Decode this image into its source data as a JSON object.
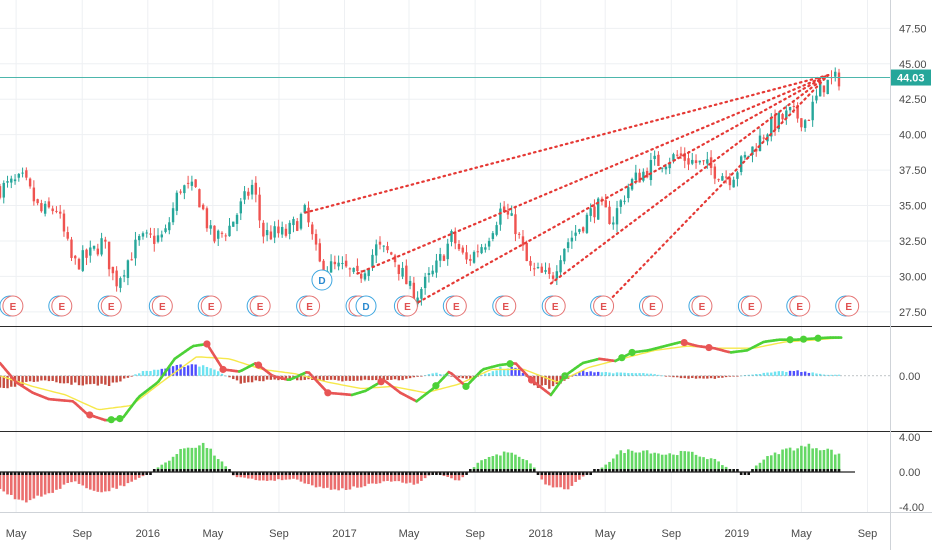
{
  "colors": {
    "up": "#26a69a",
    "down": "#ef5350",
    "trendline": "#e53935",
    "price_line": "#4db6ac",
    "price_badge": "#26a69a",
    "macd_fast": "#4cd137",
    "macd_slow": "#f6e84a",
    "hist_cyan": "#5ee0f0",
    "hist_blue": "#3b3bff",
    "hist_red": "#c0392b",
    "osc_green": "#4ad14a",
    "osc_red": "#e85555",
    "grid": "#eef0f3",
    "axis_text": "#4a4a4a"
  },
  "chart_data": [
    {
      "type": "candlestick",
      "panel": "price",
      "x_start": "2015-04",
      "x_end": "2019-09",
      "ylim": [
        26.5,
        49.5
      ],
      "yticks": [
        "47.50",
        "45.00",
        "42.50",
        "40.00",
        "37.50",
        "35.00",
        "32.50",
        "30.00",
        "27.50"
      ],
      "last_price": "44.03",
      "close_path": [
        [
          "2015-04-01",
          36.2
        ],
        [
          "2015-05-15",
          36.8
        ],
        [
          "2015-06-15",
          34.5
        ],
        [
          "2015-07-15",
          34.8
        ],
        [
          "2015-08-15",
          30.8
        ],
        [
          "2015-09-15",
          31.5
        ],
        [
          "2015-10-10",
          32.5
        ],
        [
          "2015-11-01",
          29.5
        ],
        [
          "2015-12-15",
          32.5
        ],
        [
          "2016-02-01",
          32.8
        ],
        [
          "2016-03-01",
          36.3
        ],
        [
          "2016-04-01",
          36.0
        ],
        [
          "2016-05-01",
          32.5
        ],
        [
          "2016-06-01",
          33.5
        ],
        [
          "2016-07-15",
          36.5
        ],
        [
          "2016-08-01",
          33.0
        ],
        [
          "2016-09-15",
          33.0
        ],
        [
          "2016-10-20",
          34.5
        ],
        [
          "2016-11-15",
          30.8
        ],
        [
          "2017-01-01",
          30.5
        ],
        [
          "2017-01-25",
          29.8
        ],
        [
          "2017-03-01",
          32.0
        ],
        [
          "2017-04-01",
          31.5
        ],
        [
          "2017-05-10",
          28.5
        ],
        [
          "2017-06-15",
          30.2
        ],
        [
          "2017-07-20",
          32.8
        ],
        [
          "2017-08-15",
          31.0
        ],
        [
          "2017-09-20",
          32.5
        ],
        [
          "2017-10-20",
          34.8
        ],
        [
          "2017-11-15",
          33.5
        ],
        [
          "2017-12-10",
          30.5
        ],
        [
          "2018-01-20",
          29.8
        ],
        [
          "2018-02-10",
          32.0
        ],
        [
          "2018-03-15",
          33.5
        ],
        [
          "2018-04-15",
          35.0
        ],
        [
          "2018-05-15",
          34.0
        ],
        [
          "2018-06-15",
          36.5
        ],
        [
          "2018-08-01",
          38.0
        ],
        [
          "2018-09-15",
          38.5
        ],
        [
          "2018-11-01",
          37.8
        ],
        [
          "2018-12-20",
          37.0
        ],
        [
          "2019-01-20",
          38.5
        ],
        [
          "2019-03-01",
          40.5
        ],
        [
          "2019-04-10",
          41.5
        ],
        [
          "2019-05-10",
          41.0
        ],
        [
          "2019-06-10",
          43.5
        ],
        [
          "2019-07-12",
          44.0
        ]
      ],
      "trendlines": [
        {
          "from": [
            "2016-10-20",
            34.5
          ],
          "to": [
            "2019-06-20",
            44.2
          ]
        },
        {
          "from": [
            "2017-05-10",
            28.0
          ],
          "to": [
            "2019-06-20",
            44.2
          ]
        },
        {
          "from": [
            "2018-01-20",
            29.5
          ],
          "to": [
            "2019-06-20",
            44.2
          ]
        },
        {
          "from": [
            "2018-05-01",
            28.0
          ],
          "to": [
            "2019-06-20",
            44.2
          ]
        },
        {
          "from": [
            "2017-01-25",
            30.2
          ],
          "to": [
            "2019-06-20",
            44.2
          ]
        }
      ],
      "events": [
        {
          "label": "E",
          "date": "2015-04-25"
        },
        {
          "label": "E",
          "date": "2015-07-25"
        },
        {
          "label": "E",
          "date": "2015-10-25"
        },
        {
          "label": "E",
          "date": "2016-01-28"
        },
        {
          "label": "E",
          "date": "2016-04-28"
        },
        {
          "label": "E",
          "date": "2016-07-28"
        },
        {
          "label": "E",
          "date": "2016-10-28"
        },
        {
          "label": "E",
          "date": "2017-01-28"
        },
        {
          "label": "E",
          "date": "2017-04-28"
        },
        {
          "label": "E",
          "date": "2017-07-28"
        },
        {
          "label": "E",
          "date": "2017-10-28"
        },
        {
          "label": "E",
          "date": "2018-01-28"
        },
        {
          "label": "E",
          "date": "2018-04-28"
        },
        {
          "label": "E",
          "date": "2018-07-28"
        },
        {
          "label": "E",
          "date": "2018-10-28"
        },
        {
          "label": "E",
          "date": "2019-01-28"
        },
        {
          "label": "E",
          "date": "2019-04-28"
        },
        {
          "label": "E",
          "date": "2019-07-28"
        },
        {
          "label": "D",
          "date": "2016-11-20",
          "raised": true
        },
        {
          "label": "D",
          "date": "2017-02-10"
        }
      ]
    },
    {
      "type": "line+bar",
      "panel": "macd",
      "ylim": [
        -2.6,
        2.3
      ],
      "yticks": [
        "0.00"
      ],
      "fast_line": [
        [
          "2015-04-01",
          0.6
        ],
        [
          "2015-05-01",
          -0.3
        ],
        [
          "2015-06-01",
          -0.8
        ],
        [
          "2015-07-01",
          -1.1
        ],
        [
          "2015-08-15",
          -1.2
        ],
        [
          "2015-09-10",
          -1.8
        ],
        [
          "2015-10-15",
          -2.1
        ],
        [
          "2015-11-15",
          -2.0
        ],
        [
          "2015-12-15",
          -1.0
        ],
        [
          "2016-01-20",
          -0.3
        ],
        [
          "2016-02-20",
          0.8
        ],
        [
          "2016-03-25",
          1.4
        ],
        [
          "2016-04-20",
          1.5
        ],
        [
          "2016-05-20",
          0.3
        ],
        [
          "2016-06-20",
          0.2
        ],
        [
          "2016-07-20",
          0.6
        ],
        [
          "2016-08-20",
          0.0
        ],
        [
          "2016-09-20",
          -0.2
        ],
        [
          "2016-10-25",
          0.2
        ],
        [
          "2016-12-01",
          -0.8
        ],
        [
          "2017-01-15",
          -0.9
        ],
        [
          "2017-02-10",
          -0.7
        ],
        [
          "2017-03-15",
          -0.2
        ],
        [
          "2017-04-15",
          -0.8
        ],
        [
          "2017-05-15",
          -1.2
        ],
        [
          "2017-06-15",
          -0.6
        ],
        [
          "2017-07-15",
          0.2
        ],
        [
          "2017-08-15",
          -0.5
        ],
        [
          "2017-09-15",
          0.3
        ],
        [
          "2017-10-15",
          0.5
        ],
        [
          "2017-11-15",
          0.6
        ],
        [
          "2017-12-15",
          -0.2
        ],
        [
          "2018-01-20",
          -0.9
        ],
        [
          "2018-02-15",
          0.0
        ],
        [
          "2018-03-20",
          0.6
        ],
        [
          "2018-04-20",
          0.8
        ],
        [
          "2018-05-20",
          0.7
        ],
        [
          "2018-06-20",
          1.1
        ],
        [
          "2018-07-20",
          1.2
        ],
        [
          "2018-08-20",
          1.4
        ],
        [
          "2018-09-20",
          1.6
        ],
        [
          "2018-10-20",
          1.4
        ],
        [
          "2018-11-20",
          1.3
        ],
        [
          "2018-12-20",
          1.1
        ],
        [
          "2019-01-20",
          1.2
        ],
        [
          "2019-02-20",
          1.6
        ],
        [
          "2019-03-20",
          1.7
        ],
        [
          "2019-04-20",
          1.7
        ],
        [
          "2019-05-20",
          1.75
        ],
        [
          "2019-06-20",
          1.8
        ],
        [
          "2019-07-15",
          1.8
        ]
      ],
      "slow_line": [
        [
          "2015-04-01",
          0.0
        ],
        [
          "2015-06-01",
          -0.5
        ],
        [
          "2015-08-01",
          -0.9
        ],
        [
          "2015-10-01",
          -1.6
        ],
        [
          "2015-12-01",
          -1.4
        ],
        [
          "2016-02-01",
          -0.2
        ],
        [
          "2016-04-01",
          0.9
        ],
        [
          "2016-06-01",
          0.8
        ],
        [
          "2016-08-01",
          0.3
        ],
        [
          "2016-10-01",
          0.1
        ],
        [
          "2016-12-01",
          -0.3
        ],
        [
          "2017-02-01",
          -0.6
        ],
        [
          "2017-04-01",
          -0.5
        ],
        [
          "2017-06-01",
          -0.8
        ],
        [
          "2017-08-01",
          -0.4
        ],
        [
          "2017-10-01",
          0.3
        ],
        [
          "2017-12-01",
          0.3
        ],
        [
          "2018-02-01",
          -0.3
        ],
        [
          "2018-04-01",
          0.4
        ],
        [
          "2018-06-01",
          0.8
        ],
        [
          "2018-08-01",
          1.2
        ],
        [
          "2018-10-01",
          1.4
        ],
        [
          "2018-12-01",
          1.3
        ],
        [
          "2019-02-01",
          1.3
        ],
        [
          "2019-04-01",
          1.6
        ],
        [
          "2019-06-01",
          1.7
        ],
        [
          "2019-07-15",
          1.8
        ]
      ],
      "histogram": [
        [
          "2015-04-15",
          -0.6,
          "red"
        ],
        [
          "2015-06-10",
          -0.25,
          "red"
        ],
        [
          "2015-08-10",
          -0.4,
          "red"
        ],
        [
          "2015-10-20",
          -0.5,
          "red"
        ],
        [
          "2015-12-20",
          0.2,
          "cyan"
        ],
        [
          "2016-02-20",
          0.45,
          "blue"
        ],
        [
          "2016-03-20",
          0.6,
          "blue"
        ],
        [
          "2016-04-20",
          0.5,
          "cyan"
        ],
        [
          "2016-06-20",
          -0.35,
          "red"
        ],
        [
          "2016-08-20",
          -0.2,
          "red"
        ],
        [
          "2016-10-20",
          -0.2,
          "red"
        ],
        [
          "2016-12-20",
          -0.25,
          "red"
        ],
        [
          "2017-02-20",
          -0.2,
          "red"
        ],
        [
          "2017-04-20",
          -0.2,
          "red"
        ],
        [
          "2017-06-20",
          0.15,
          "cyan"
        ],
        [
          "2017-08-20",
          -0.2,
          "red"
        ],
        [
          "2017-10-20",
          0.4,
          "cyan"
        ],
        [
          "2017-11-20",
          0.45,
          "blue"
        ],
        [
          "2017-12-20",
          -0.5,
          "red"
        ],
        [
          "2018-01-20",
          -0.6,
          "red"
        ],
        [
          "2018-03-20",
          0.25,
          "blue"
        ],
        [
          "2018-05-20",
          0.15,
          "cyan"
        ],
        [
          "2018-07-20",
          0.12,
          "cyan"
        ],
        [
          "2018-09-20",
          -0.12,
          "red"
        ],
        [
          "2018-11-20",
          -0.15,
          "red"
        ],
        [
          "2019-01-20",
          0.05,
          "cyan"
        ],
        [
          "2019-03-20",
          0.2,
          "cyan"
        ],
        [
          "2019-04-20",
          0.25,
          "blue"
        ],
        [
          "2019-06-20",
          0.05,
          "cyan"
        ]
      ],
      "crossovers": [
        "2015-09-15",
        "2015-10-25",
        "2015-11-10",
        "2016-04-20",
        "2016-05-20",
        "2016-07-25",
        "2016-12-01",
        "2017-03-10",
        "2017-06-20",
        "2017-08-15",
        "2017-11-05",
        "2017-12-15",
        "2018-02-15",
        "2018-06-01",
        "2018-06-20",
        "2018-09-25",
        "2018-11-10",
        "2019-04-10",
        "2019-05-05",
        "2019-06-01"
      ]
    },
    {
      "type": "bar",
      "panel": "oscillator",
      "ylim": [
        -4.6,
        4.6
      ],
      "yticks": [
        "4.00",
        "0.00",
        "-4.00"
      ],
      "profile": [
        [
          "2015-04-01",
          -2.0
        ],
        [
          "2015-05-20",
          -3.5
        ],
        [
          "2015-07-01",
          -2.5
        ],
        [
          "2015-08-15",
          -1.0
        ],
        [
          "2015-10-01",
          -2.5
        ],
        [
          "2015-11-15",
          -1.6
        ],
        [
          "2016-01-01",
          -0.2
        ],
        [
          "2016-02-01",
          1.0
        ],
        [
          "2016-03-10",
          2.8
        ],
        [
          "2016-04-15",
          3.2
        ],
        [
          "2016-05-20",
          1.0
        ],
        [
          "2016-06-10",
          -0.5
        ],
        [
          "2016-08-01",
          -1.0
        ],
        [
          "2016-10-01",
          -0.8
        ],
        [
          "2016-11-15",
          -1.8
        ],
        [
          "2017-01-01",
          -2.0
        ],
        [
          "2017-02-15",
          -1.5
        ],
        [
          "2017-04-01",
          -1.0
        ],
        [
          "2017-05-15",
          -1.5
        ],
        [
          "2017-06-15",
          0.0
        ],
        [
          "2017-08-01",
          -1.0
        ],
        [
          "2017-09-15",
          1.5
        ],
        [
          "2017-11-01",
          2.3
        ],
        [
          "2017-12-15",
          1.0
        ],
        [
          "2018-01-10",
          -1.5
        ],
        [
          "2018-02-20",
          -2.0
        ],
        [
          "2018-03-20",
          -0.5
        ],
        [
          "2018-04-20",
          0.3
        ],
        [
          "2018-06-01",
          2.4
        ],
        [
          "2018-07-15",
          2.5
        ],
        [
          "2018-08-20",
          2.0
        ],
        [
          "2018-10-01",
          2.3
        ],
        [
          "2018-11-20",
          1.4
        ],
        [
          "2018-12-20",
          0.3
        ],
        [
          "2019-01-20",
          -0.2
        ],
        [
          "2019-02-20",
          1.5
        ],
        [
          "2019-04-01",
          2.6
        ],
        [
          "2019-05-15",
          3.0
        ],
        [
          "2019-06-20",
          2.6
        ],
        [
          "2019-07-15",
          1.8
        ]
      ]
    }
  ],
  "x_axis": {
    "labels": [
      {
        "text": "May",
        "date": "2015-05-01"
      },
      {
        "text": "Sep",
        "date": "2015-09-01"
      },
      {
        "text": "2016",
        "date": "2016-01-01"
      },
      {
        "text": "May",
        "date": "2016-05-01"
      },
      {
        "text": "Sep",
        "date": "2016-09-01"
      },
      {
        "text": "2017",
        "date": "2017-01-01"
      },
      {
        "text": "May",
        "date": "2017-05-01"
      },
      {
        "text": "Sep",
        "date": "2017-09-01"
      },
      {
        "text": "2018",
        "date": "2018-01-01"
      },
      {
        "text": "May",
        "date": "2018-05-01"
      },
      {
        "text": "Sep",
        "date": "2018-09-01"
      },
      {
        "text": "2019",
        "date": "2019-01-01"
      },
      {
        "text": "May",
        "date": "2019-05-01"
      },
      {
        "text": "Sep",
        "date": "2019-09-01"
      }
    ]
  }
}
